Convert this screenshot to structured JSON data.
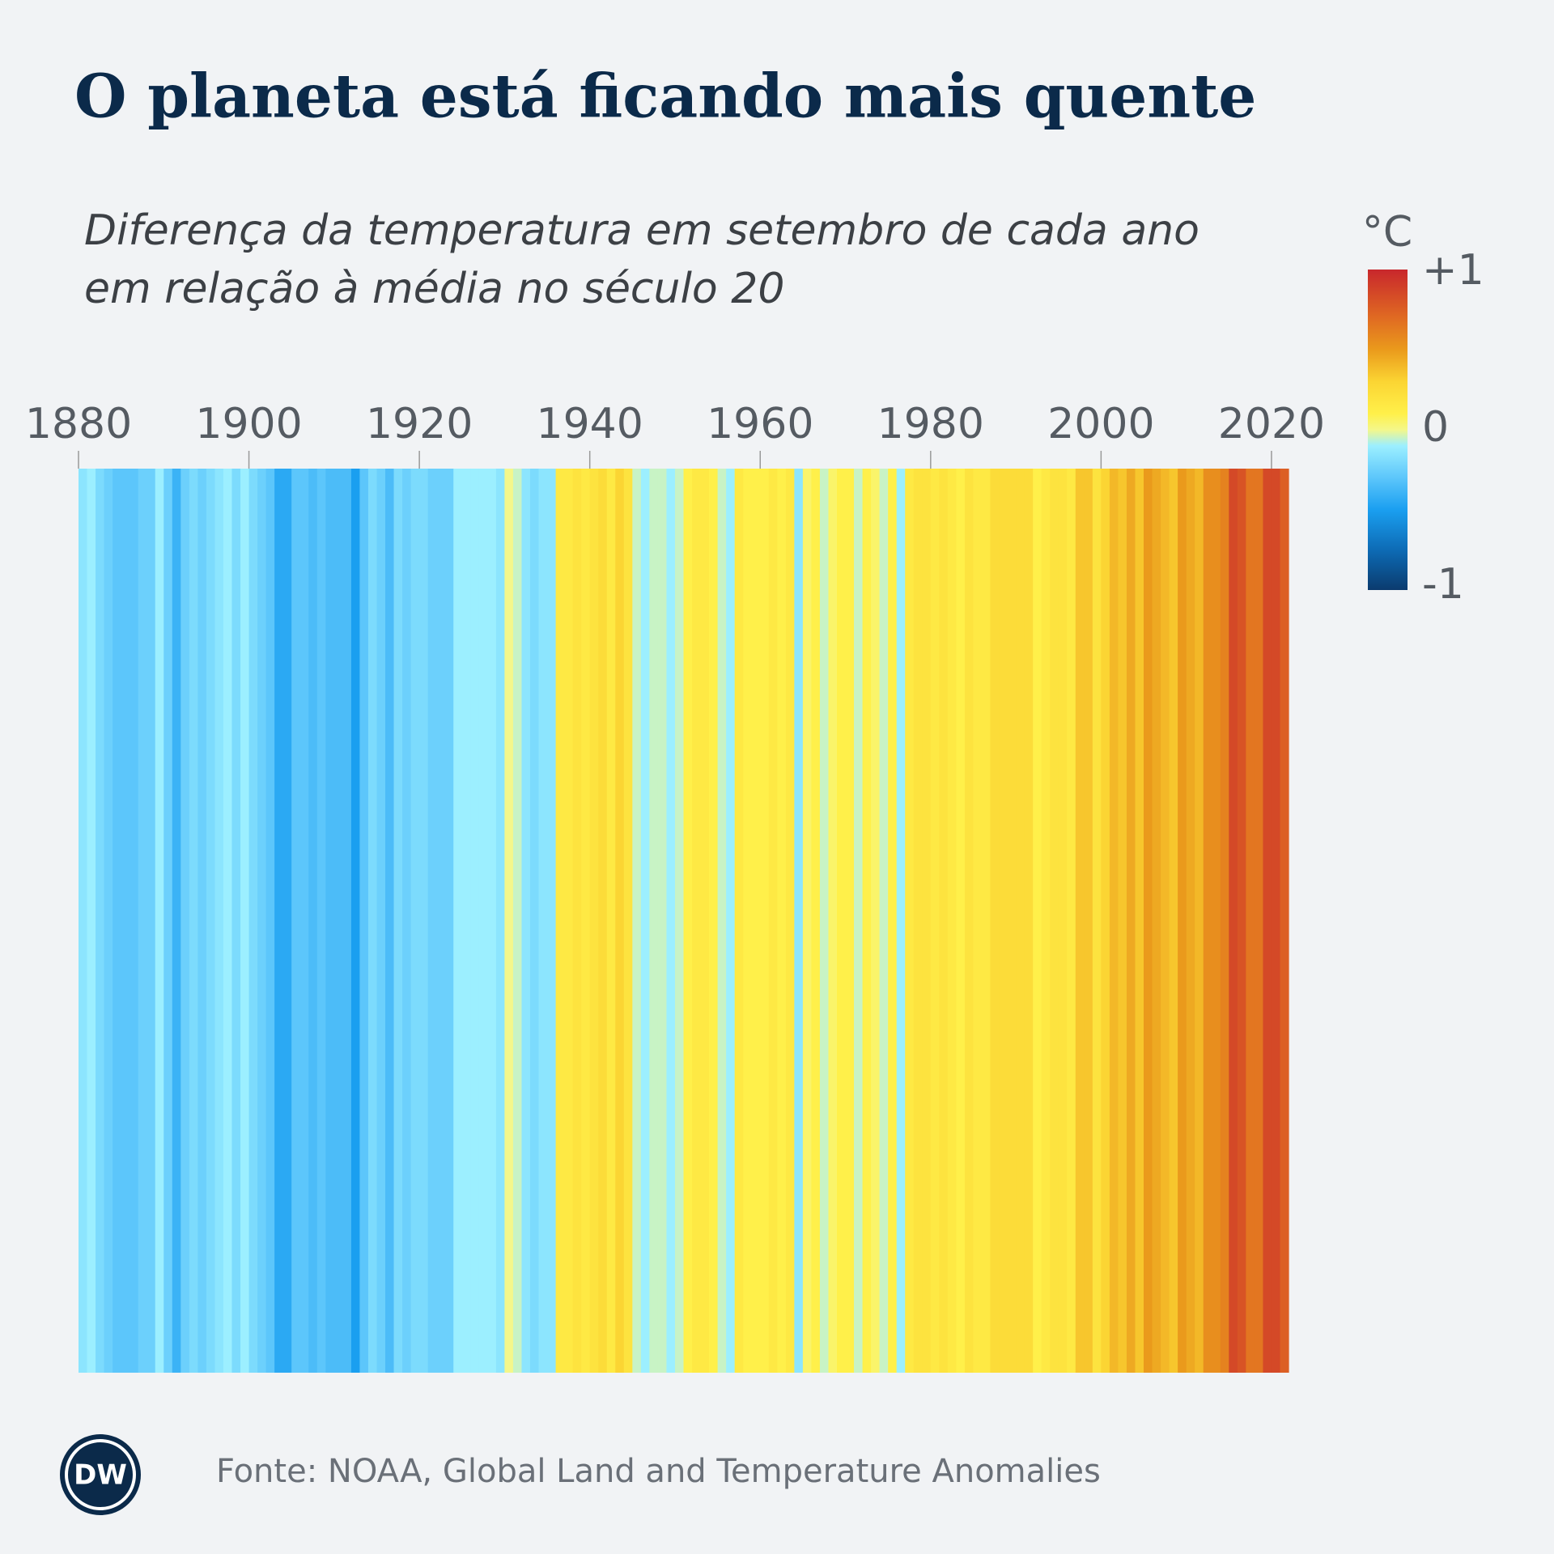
{
  "chart_data": {
    "type": "stripes",
    "title": "O planeta está ficando mais quente",
    "subtitle": [
      "Diferença da temperatura em setembro de cada ano",
      "em relação à média no século 20"
    ],
    "source": "Fonte: NOAA, Global Land and Temperature Anomalies",
    "logo": "DW",
    "x": [
      1880,
      1881,
      1882,
      1883,
      1884,
      1885,
      1886,
      1887,
      1888,
      1889,
      1890,
      1891,
      1892,
      1893,
      1894,
      1895,
      1896,
      1897,
      1898,
      1899,
      1900,
      1901,
      1902,
      1903,
      1904,
      1905,
      1906,
      1907,
      1908,
      1909,
      1910,
      1911,
      1912,
      1913,
      1914,
      1915,
      1916,
      1917,
      1918,
      1919,
      1920,
      1921,
      1922,
      1923,
      1924,
      1925,
      1926,
      1927,
      1928,
      1929,
      1930,
      1931,
      1932,
      1933,
      1934,
      1935,
      1936,
      1937,
      1938,
      1939,
      1940,
      1941,
      1942,
      1943,
      1944,
      1945,
      1946,
      1947,
      1948,
      1949,
      1950,
      1951,
      1952,
      1953,
      1954,
      1955,
      1956,
      1957,
      1958,
      1959,
      1960,
      1961,
      1962,
      1963,
      1964,
      1965,
      1966,
      1967,
      1968,
      1969,
      1970,
      1971,
      1972,
      1973,
      1974,
      1975,
      1976,
      1977,
      1978,
      1979,
      1980,
      1981,
      1982,
      1983,
      1984,
      1985,
      1986,
      1987,
      1988,
      1989,
      1990,
      1991,
      1992,
      1993,
      1994,
      1995,
      1996,
      1997,
      1998,
      1999,
      2000,
      2001,
      2002,
      2003,
      2004,
      2005,
      2006,
      2007,
      2008,
      2009,
      2010,
      2011,
      2012,
      2013,
      2014,
      2015,
      2016,
      2017,
      2018,
      2019,
      2020,
      2021
    ],
    "values": [
      -0.15,
      -0.1,
      -0.2,
      -0.25,
      -0.3,
      -0.3,
      -0.3,
      -0.25,
      -0.25,
      -0.1,
      -0.25,
      -0.4,
      -0.25,
      -0.2,
      -0.25,
      -0.2,
      -0.15,
      -0.1,
      -0.2,
      -0.1,
      -0.2,
      -0.25,
      -0.3,
      -0.45,
      -0.45,
      -0.3,
      -0.3,
      -0.35,
      -0.3,
      -0.35,
      -0.35,
      -0.35,
      -0.5,
      -0.3,
      -0.2,
      -0.25,
      -0.35,
      -0.2,
      -0.25,
      -0.2,
      -0.2,
      -0.25,
      -0.25,
      -0.25,
      -0.1,
      -0.1,
      -0.1,
      -0.1,
      -0.1,
      -0.15,
      0.0,
      -0.05,
      -0.15,
      -0.2,
      -0.15,
      -0.15,
      0.15,
      0.15,
      0.2,
      0.15,
      0.2,
      0.25,
      0.15,
      0.3,
      0.2,
      -0.05,
      -0.1,
      -0.05,
      -0.05,
      -0.1,
      -0.05,
      0.1,
      0.15,
      0.15,
      0.1,
      -0.05,
      -0.1,
      0.15,
      0.1,
      0.1,
      0.1,
      0.15,
      0.1,
      0.15,
      -0.15,
      0.05,
      0.1,
      -0.05,
      0.05,
      0.1,
      0.1,
      -0.05,
      0.1,
      0.05,
      -0.05,
      0.1,
      -0.1,
      0.15,
      0.2,
      0.2,
      0.15,
      0.2,
      0.15,
      0.1,
      0.2,
      0.15,
      0.15,
      0.25,
      0.25,
      0.25,
      0.25,
      0.25,
      0.1,
      0.15,
      0.2,
      0.2,
      0.15,
      0.35,
      0.35,
      0.2,
      0.3,
      0.4,
      0.35,
      0.45,
      0.35,
      0.5,
      0.45,
      0.4,
      0.35,
      0.5,
      0.45,
      0.4,
      0.55,
      0.55,
      0.6,
      0.85,
      0.8,
      0.65,
      0.65,
      0.85,
      0.85,
      0.75
    ],
    "xlim": [
      1880,
      2022
    ],
    "xticks": [
      1880,
      1900,
      1920,
      1940,
      1960,
      1980,
      2000,
      2020
    ],
    "colorbar_label": "°C",
    "clim": [
      -1,
      1
    ],
    "cticks": [
      {
        "value": 1,
        "label": "+1"
      },
      0,
      -1
    ],
    "colorscale": [
      {
        "value": -1,
        "color": "#0b3b6e"
      },
      {
        "value": -0.75,
        "color": "#0d6bb5"
      },
      {
        "value": -0.5,
        "color": "#1a9ff0"
      },
      {
        "value": -0.3,
        "color": "#5cc6fb"
      },
      {
        "value": -0.1,
        "color": "#9cefff"
      },
      {
        "value": 0,
        "color": "#f4f78a"
      },
      {
        "value": 0.1,
        "color": "#fff04a"
      },
      {
        "value": 0.3,
        "color": "#fbd533"
      },
      {
        "value": 0.5,
        "color": "#ea9a1c"
      },
      {
        "value": 0.7,
        "color": "#e06a22"
      },
      {
        "value": 1,
        "color": "#c8272c"
      }
    ]
  }
}
